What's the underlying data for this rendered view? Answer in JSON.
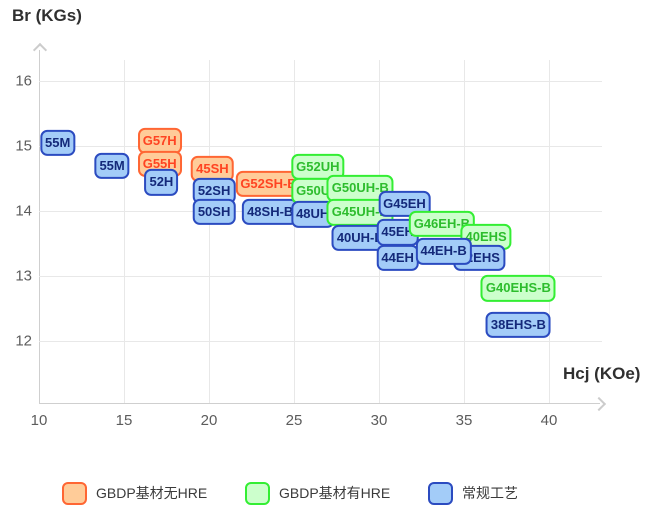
{
  "axes": {
    "y_title": "Br (KGs)",
    "x_title": "Hcj (KOe)"
  },
  "chart_data": {
    "type": "scatter",
    "title": "",
    "xlabel": "Hcj (KOe)",
    "ylabel": "Br (KGs)",
    "xlim": [
      10,
      43
    ],
    "ylim": [
      11,
      16.5
    ],
    "x_ticks": [
      10,
      15,
      20,
      25,
      30,
      35,
      40
    ],
    "y_ticks": [
      16,
      15,
      14,
      13,
      12
    ],
    "grid": true,
    "legend_position": "bottom",
    "series_styles": {
      "gbdp_no_hre": {
        "label": "GBDP基材无HRE",
        "fill": "#FFCC99",
        "border": "#FF6633",
        "text": "#FF4422"
      },
      "gbdp_hre": {
        "label": "GBDP基材有HRE",
        "fill": "#CCFFCC",
        "border": "#33EE33",
        "text": "#2DBD2D"
      },
      "conventional": {
        "label": "常规工艺",
        "fill": "#A3CCF8",
        "border": "#2B4BC0",
        "text": "#14297A"
      }
    },
    "points": [
      {
        "label": "55M",
        "series": "conventional",
        "hcj": 11.1,
        "br": 15.05
      },
      {
        "label": "55M",
        "series": "conventional",
        "hcj": 14.3,
        "br": 14.69
      },
      {
        "label": "G57H",
        "series": "gbdp_no_hre",
        "hcj": 17.1,
        "br": 15.08
      },
      {
        "label": "G55H",
        "series": "gbdp_no_hre",
        "hcj": 17.1,
        "br": 14.72
      },
      {
        "label": "52H",
        "series": "conventional",
        "hcj": 17.2,
        "br": 14.44
      },
      {
        "label": "45SH",
        "series": "gbdp_no_hre",
        "hcj": 20.2,
        "br": 14.65
      },
      {
        "label": "52SH",
        "series": "conventional",
        "hcj": 20.3,
        "br": 14.31
      },
      {
        "label": "50SH",
        "series": "conventional",
        "hcj": 20.3,
        "br": 13.99
      },
      {
        "label": "G52SH-B",
        "series": "gbdp_no_hre",
        "hcj": 23.5,
        "br": 14.42
      },
      {
        "label": "48SH-B",
        "series": "conventional",
        "hcj": 23.6,
        "br": 13.99
      },
      {
        "label": "G52UH",
        "series": "gbdp_hre",
        "hcj": 26.4,
        "br": 14.68
      },
      {
        "label": "G50UH",
        "series": "gbdp_hre",
        "hcj": 26.4,
        "br": 14.31
      },
      {
        "label": "48UH",
        "series": "conventional",
        "hcj": 26.1,
        "br": 13.95
      },
      {
        "label": "G50UH-B",
        "series": "gbdp_hre",
        "hcj": 28.9,
        "br": 14.35
      },
      {
        "label": "G45UH-B",
        "series": "gbdp_hre",
        "hcj": 28.9,
        "br": 13.98
      },
      {
        "label": "40UH-B",
        "series": "conventional",
        "hcj": 28.9,
        "br": 13.59
      },
      {
        "label": "G45EH",
        "series": "conventional",
        "hcj": 31.5,
        "br": 14.11
      },
      {
        "label": "45EH",
        "series": "conventional",
        "hcj": 31.1,
        "br": 13.67
      },
      {
        "label": "44EH",
        "series": "conventional",
        "hcj": 31.1,
        "br": 13.28
      },
      {
        "label": "G46EH-B",
        "series": "gbdp_hre",
        "hcj": 33.7,
        "br": 13.8
      },
      {
        "label": "40EHS",
        "series": "gbdp_hre",
        "hcj": 36.3,
        "br": 13.6
      },
      {
        "label": "42EHS",
        "series": "conventional",
        "hcj": 35.9,
        "br": 13.28
      },
      {
        "label": "44EH-B",
        "series": "conventional",
        "hcj": 33.8,
        "br": 13.38
      },
      {
        "label": "G40EHS-B",
        "series": "gbdp_hre",
        "hcj": 38.2,
        "br": 12.81
      },
      {
        "label": "38EHS-B",
        "series": "conventional",
        "hcj": 38.2,
        "br": 12.25
      }
    ]
  },
  "legend": {
    "items": [
      {
        "series": "gbdp_no_hre",
        "label": "GBDP基材无HRE"
      },
      {
        "series": "gbdp_hre",
        "label": "GBDP基材有HRE"
      },
      {
        "series": "conventional",
        "label": "常规工艺"
      }
    ]
  }
}
